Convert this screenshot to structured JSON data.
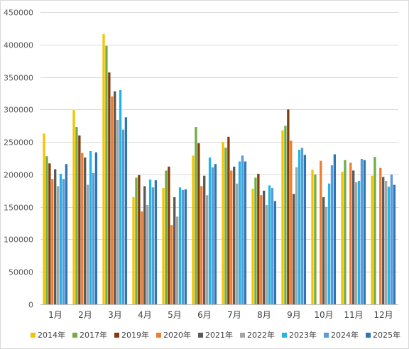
{
  "chart_data": {
    "type": "bar",
    "title": "",
    "xlabel": "",
    "ylabel": "",
    "ylim": [
      0,
      450000
    ],
    "yticks": [
      0,
      50000,
      100000,
      150000,
      200000,
      250000,
      300000,
      350000,
      400000,
      450000
    ],
    "ytick_labels": [
      "0",
      "50000",
      "100000",
      "150000",
      "200000",
      "250000",
      "300000",
      "350000",
      "400000",
      "450000"
    ],
    "grid": true,
    "legend_position": "bottom",
    "categories": [
      "1月",
      "2月",
      "3月",
      "4月",
      "5月",
      "6月",
      "7月",
      "8月",
      "9月",
      "10月",
      "11月",
      "12月"
    ],
    "series": [
      {
        "name": "2014年",
        "color": "#f5c400",
        "values": [
          263000,
          299000,
          416000,
          165000,
          179000,
          229000,
          250000,
          178000,
          268000,
          207000,
          204000,
          198000
        ]
      },
      {
        "name": "2017年",
        "color": "#70ad47",
        "values": [
          228000,
          273000,
          398000,
          195000,
          206000,
          273000,
          241000,
          195000,
          275000,
          200000,
          222000,
          227000
        ]
      },
      {
        "name": "2019年",
        "color": "#843c0c",
        "values": [
          217000,
          260000,
          357000,
          199000,
          212000,
          248000,
          258000,
          201000,
          300000,
          0,
          0,
          0
        ]
      },
      {
        "name": "2020年",
        "color": "#ed7d31",
        "values": [
          193000,
          233000,
          320000,
          143000,
          122000,
          182000,
          206000,
          168000,
          252000,
          221000,
          218000,
          210000
        ]
      },
      {
        "name": "2021年",
        "color": "#595959",
        "values": [
          208000,
          226000,
          328000,
          182000,
          165000,
          198000,
          212000,
          175000,
          170000,
          165000,
          206000,
          196000
        ]
      },
      {
        "name": "2022年",
        "color": "#a5a5a5",
        "values": [
          182000,
          184000,
          284000,
          153000,
          135000,
          168000,
          186000,
          153000,
          211000,
          150000,
          188000,
          190000
        ]
      },
      {
        "name": "2023年",
        "color": "#1fb5e8",
        "values": [
          201000,
          236000,
          330000,
          192000,
          180000,
          226000,
          220000,
          183000,
          238000,
          186000,
          190000,
          181000
        ]
      },
      {
        "name": "2024年",
        "color": "#5b9bd5",
        "values": [
          193000,
          202000,
          269000,
          180000,
          176000,
          211000,
          229000,
          179000,
          241000,
          214000,
          224000,
          200000
        ]
      },
      {
        "name": "2025年",
        "color": "#2e75b6",
        "values": [
          216000,
          234000,
          288000,
          191000,
          177000,
          216000,
          220000,
          159000,
          230000,
          231000,
          222000,
          184000
        ]
      }
    ]
  }
}
